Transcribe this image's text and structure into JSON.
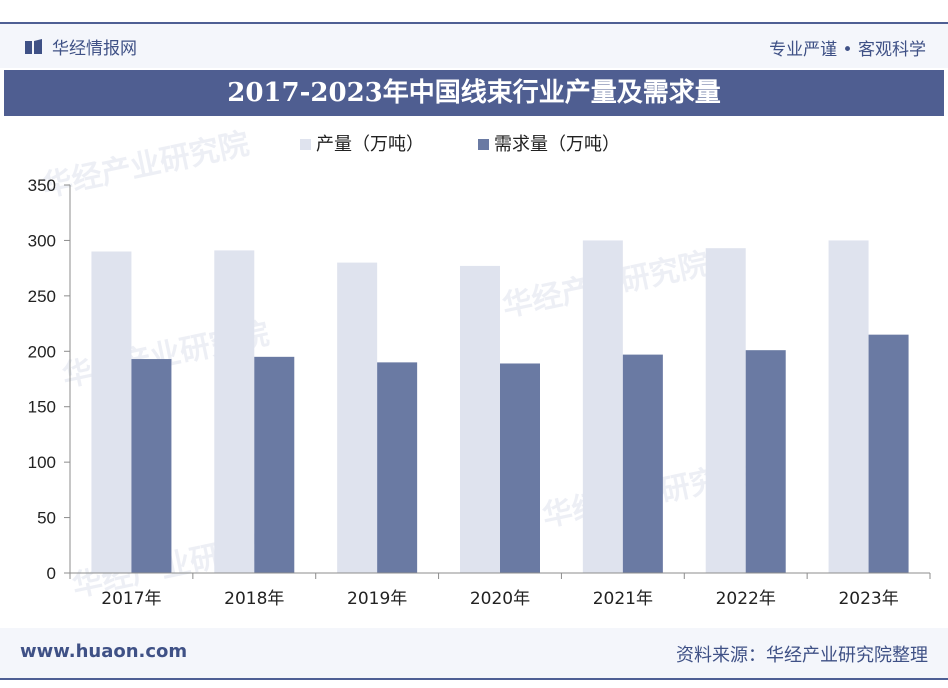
{
  "header": {
    "brand": "华经情报网",
    "slogan": "专业严谨 • 客观科学"
  },
  "title": "2017-2023年中国线束行业产量及需求量",
  "footer": {
    "url": "www.huaon.com",
    "source": "资料来源：华经产业研究院整理"
  },
  "watermark": "华经产业研究院",
  "colors": {
    "brand": "#4e5f94",
    "production": "#dfe3ee",
    "demand": "#6a7aa3"
  },
  "chart_data": {
    "type": "bar",
    "categories": [
      "2017年",
      "2018年",
      "2019年",
      "2020年",
      "2021年",
      "2022年",
      "2023年"
    ],
    "series": [
      {
        "name": "产量（万吨）",
        "values": [
          290,
          291,
          280,
          277,
          300,
          293,
          300
        ]
      },
      {
        "name": "需求量（万吨）",
        "values": [
          193,
          195,
          190,
          189,
          197,
          201,
          215
        ]
      }
    ],
    "ylim": [
      0,
      350
    ],
    "yticks": [
      0,
      50,
      100,
      150,
      200,
      250,
      300,
      350
    ],
    "legend_position": "top",
    "grid": false
  }
}
